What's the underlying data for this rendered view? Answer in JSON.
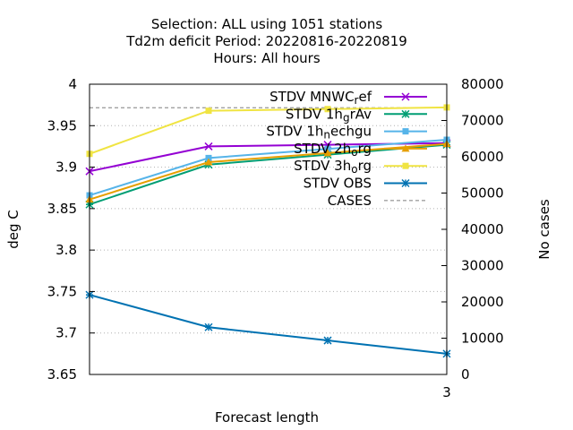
{
  "chart_data": {
    "type": "line",
    "title_lines": [
      "Selection: ALL using  1051 stations",
      "Td2m deficit   Period: 20220816-20220819",
      "Hours:  All hours"
    ],
    "xlabel": "Forecast length",
    "ylabel": "deg C",
    "y2label": "No cases",
    "x": [
      0,
      1,
      2,
      3
    ],
    "xticks": [
      "3"
    ],
    "ylim": [
      3.65,
      4.0
    ],
    "yticks": [
      "4",
      "3.95",
      "3.9",
      "3.85",
      "3.8",
      "3.75",
      "3.7",
      "3.65"
    ],
    "y2lim": [
      0,
      80000
    ],
    "y2ticks": [
      "80000",
      "70000",
      "60000",
      "50000",
      "40000",
      "30000",
      "20000",
      "10000",
      "0"
    ],
    "legend_position": "top-right",
    "series": [
      {
        "name": "STDV MNWC_ref",
        "legend_parts": [
          [
            "STDV MNWC",
            ""
          ],
          [
            "r",
            "sub"
          ],
          [
            "ef",
            ""
          ]
        ],
        "color": "#9400d3",
        "marker": "x",
        "values": [
          3.895,
          3.925,
          3.927,
          3.929
        ]
      },
      {
        "name": "STDV 1h_grAv",
        "legend_parts": [
          [
            "STDV 1h",
            ""
          ],
          [
            "g",
            "sub"
          ],
          [
            "rAv",
            ""
          ]
        ],
        "color": "#009e73",
        "marker": "star",
        "values": [
          3.855,
          3.903,
          3.915,
          3.927
        ]
      },
      {
        "name": "STDV 1h_nechgu",
        "legend_parts": [
          [
            "STDV 1h",
            ""
          ],
          [
            "n",
            "sub"
          ],
          [
            "echgu",
            ""
          ]
        ],
        "color": "#56b4e9",
        "marker": "square",
        "values": [
          3.866,
          3.911,
          3.922,
          3.933
        ]
      },
      {
        "name": "STDV 2h_org",
        "legend_parts": [
          [
            "STDV 2h",
            ""
          ],
          [
            "o",
            "sub"
          ],
          [
            "rg",
            ""
          ]
        ],
        "color": "#e69f00",
        "marker": "triangle",
        "values": [
          3.861,
          3.906,
          3.917,
          3.928
        ]
      },
      {
        "name": "STDV 3h_org",
        "legend_parts": [
          [
            "STDV 3h",
            ""
          ],
          [
            "o",
            "sub"
          ],
          [
            "rg",
            ""
          ]
        ],
        "color": "#f0e442",
        "marker": "square",
        "values": [
          3.916,
          3.968,
          3.97,
          3.972
        ]
      },
      {
        "name": "STDV OBS",
        "legend_parts": [
          [
            "STDV OBS",
            ""
          ]
        ],
        "color": "#0072b2",
        "marker": "star",
        "values": [
          3.746,
          3.707,
          3.691,
          3.675
        ]
      }
    ],
    "cases": {
      "name": "CASES",
      "color": "#a0a0a0",
      "dash": true,
      "values": [
        73500,
        73500,
        73500,
        73500
      ]
    }
  }
}
